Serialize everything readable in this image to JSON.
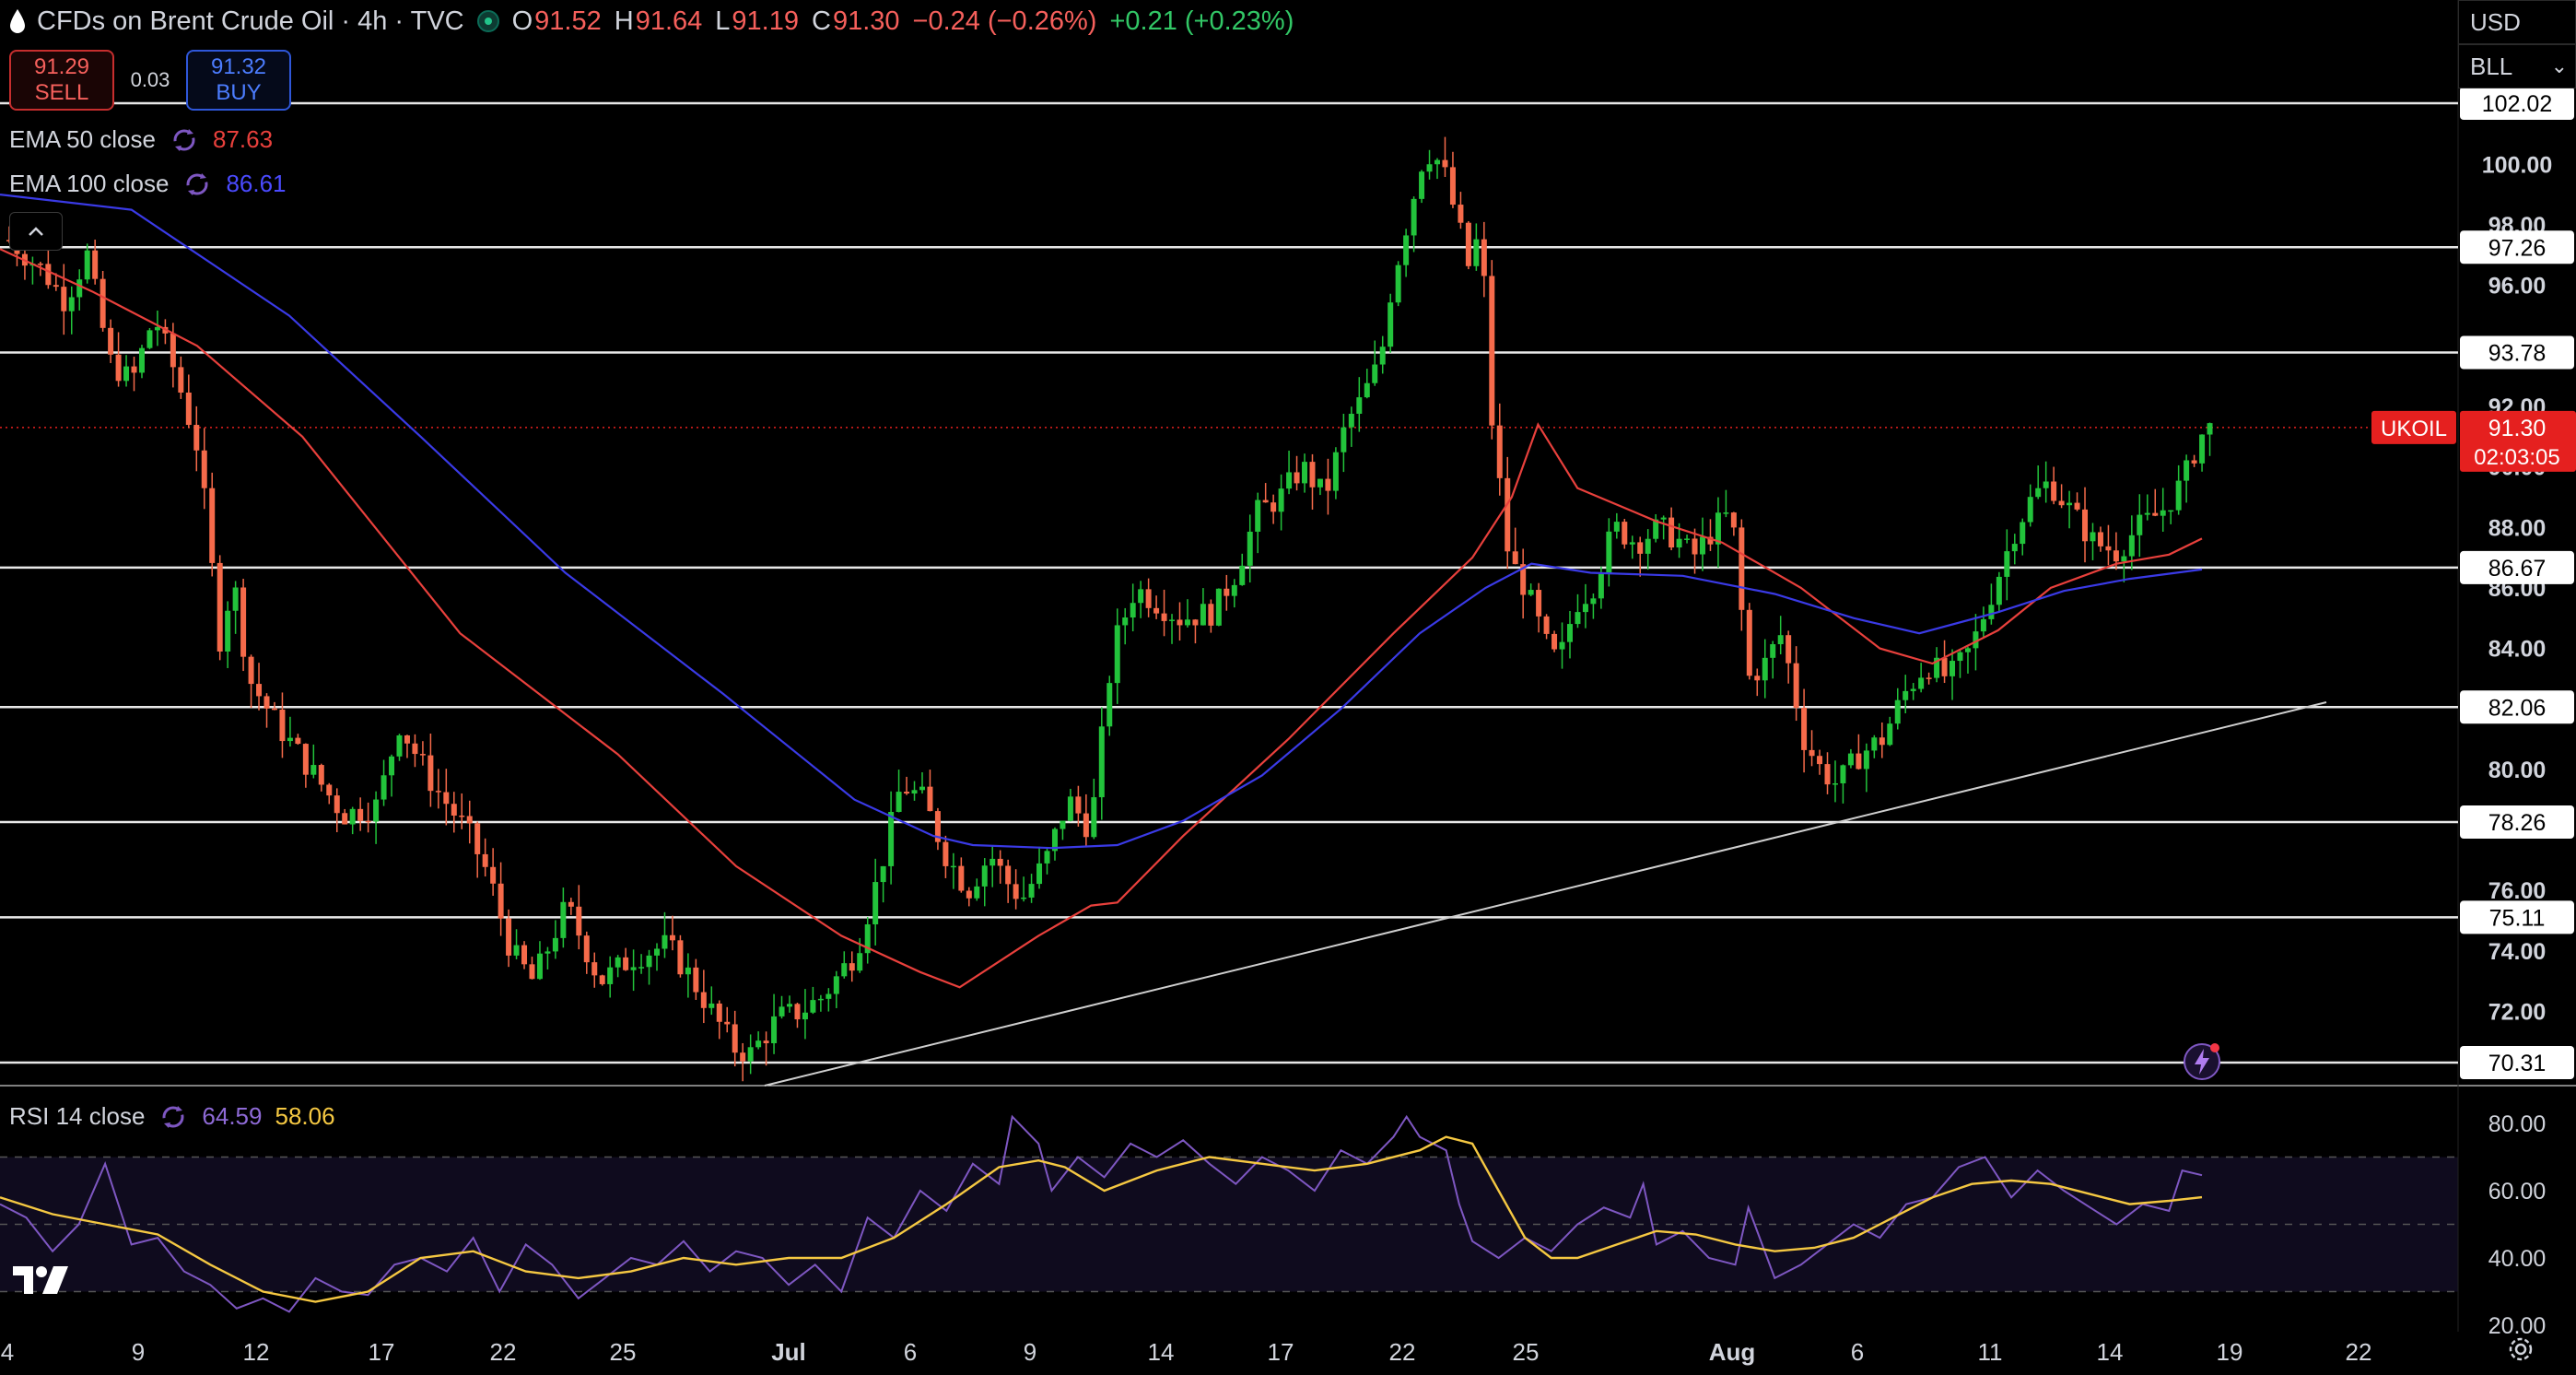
{
  "header": {
    "title": "CFDs on Brent Crude Oil · 4h · TVC",
    "open_label": "O",
    "open": "91.52",
    "high_label": "H",
    "high": "91.64",
    "low_label": "L",
    "low": "91.19",
    "close_label": "C",
    "close": "91.30",
    "change": "−0.24 (−0.26%)",
    "change2": "+0.21 (+0.23%)"
  },
  "trade": {
    "sell_price": "91.29",
    "sell_label": "SELL",
    "spread": "0.03",
    "buy_price": "91.32",
    "buy_label": "BUY"
  },
  "indicators": {
    "ema50": {
      "label": "EMA 50 close",
      "value": "87.63",
      "color": "#e8403c"
    },
    "ema100": {
      "label": "EMA 100 close",
      "value": "86.61",
      "color": "#3a3ae6"
    },
    "rsi": {
      "label": "RSI 14 close",
      "value": "64.59",
      "ma_value": "58.06",
      "color": "#7e57c2",
      "ma_color": "#f5c842"
    }
  },
  "top_right": {
    "currency": "USD",
    "unit": "BLL"
  },
  "price_tag": {
    "symbol": "UKOIL",
    "price": "91.30",
    "countdown": "02:03:05",
    "color": "#e5201f"
  },
  "colors": {
    "up": "#22c33b",
    "down": "#f56a4a",
    "background": "#000000"
  },
  "chart_data": [
    {
      "type": "candlestick",
      "title": "",
      "ylim": [
        69.5,
        103.0
      ],
      "y_ticks": [
        "72.00",
        "74.00",
        "76.00",
        "80.00",
        "84.00",
        "86.00",
        "88.00",
        "90.00",
        "92.00",
        "96.00",
        "98.00",
        "100.00"
      ],
      "x_tick_labels": [
        "4",
        "9",
        "12",
        "17",
        "22",
        "25",
        "Jul",
        "6",
        "9",
        "14",
        "17",
        "22",
        "25",
        "Aug",
        "6",
        "11",
        "14",
        "19",
        "22"
      ],
      "horizontal_levels": [
        "102.02",
        "97.26",
        "93.78",
        "86.67",
        "82.06",
        "78.26",
        "75.11",
        "70.31"
      ],
      "trendline": {
        "from": [
          "Jul 1",
          69.2
        ],
        "to": [
          "Aug 20",
          82.2
        ]
      },
      "last_price": 91.3,
      "series": [
        {
          "name": "EMA 50 close",
          "color": "#e8403c",
          "points": [
            [
              0,
              97.2
            ],
            [
              70,
              95.8
            ],
            [
              150,
              94.0
            ],
            [
              230,
              91.0
            ],
            [
              350,
              84.5
            ],
            [
              470,
              80.5
            ],
            [
              560,
              76.8
            ],
            [
              640,
              74.5
            ],
            [
              700,
              73.3
            ],
            [
              730,
              72.8
            ],
            [
              790,
              74.5
            ],
            [
              830,
              75.5
            ],
            [
              850,
              75.6
            ],
            [
              900,
              77.8
            ],
            [
              980,
              81.0
            ],
            [
              1060,
              84.5
            ],
            [
              1120,
              87.0
            ],
            [
              1150,
              89.0
            ],
            [
              1170,
              91.4
            ],
            [
              1200,
              89.3
            ],
            [
              1260,
              88.2
            ],
            [
              1310,
              87.5
            ],
            [
              1370,
              86.0
            ],
            [
              1400,
              85.0
            ],
            [
              1430,
              84.0
            ],
            [
              1470,
              83.5
            ],
            [
              1520,
              84.6
            ],
            [
              1560,
              86.0
            ],
            [
              1610,
              86.8
            ],
            [
              1650,
              87.1
            ],
            [
              1675,
              87.63
            ]
          ]
        },
        {
          "name": "EMA 100 close",
          "color": "#3a3ae6",
          "points": [
            [
              0,
              99.0
            ],
            [
              100,
              98.5
            ],
            [
              220,
              95.0
            ],
            [
              320,
              91.0
            ],
            [
              430,
              86.5
            ],
            [
              550,
              82.5
            ],
            [
              650,
              79.0
            ],
            [
              710,
              77.8
            ],
            [
              740,
              77.5
            ],
            [
              800,
              77.4
            ],
            [
              850,
              77.5
            ],
            [
              900,
              78.3
            ],
            [
              960,
              79.8
            ],
            [
              1020,
              82.0
            ],
            [
              1080,
              84.5
            ],
            [
              1130,
              86.0
            ],
            [
              1165,
              86.8
            ],
            [
              1210,
              86.5
            ],
            [
              1280,
              86.4
            ],
            [
              1350,
              85.8
            ],
            [
              1410,
              85.0
            ],
            [
              1460,
              84.5
            ],
            [
              1520,
              85.2
            ],
            [
              1570,
              85.9
            ],
            [
              1620,
              86.3
            ],
            [
              1675,
              86.61
            ]
          ]
        }
      ]
    },
    {
      "type": "line",
      "title": "RSI 14 close",
      "ylim": [
        16,
        88
      ],
      "y_ticks": [
        "20.00",
        "40.00",
        "60.00",
        "80.00"
      ],
      "bands": [
        30,
        50,
        70
      ],
      "series": [
        {
          "name": "RSI",
          "color": "#7e57c2",
          "points": [
            [
              0,
              56
            ],
            [
              20,
              52
            ],
            [
              40,
              42
            ],
            [
              60,
              50
            ],
            [
              80,
              68
            ],
            [
              100,
              44
            ],
            [
              120,
              46
            ],
            [
              140,
              36
            ],
            [
              160,
              32
            ],
            [
              180,
              25
            ],
            [
              200,
              28
            ],
            [
              220,
              24
            ],
            [
              240,
              34
            ],
            [
              260,
              30
            ],
            [
              280,
              29
            ],
            [
              300,
              38
            ],
            [
              320,
              40
            ],
            [
              340,
              36
            ],
            [
              360,
              46
            ],
            [
              380,
              30
            ],
            [
              400,
              44
            ],
            [
              420,
              38
            ],
            [
              440,
              28
            ],
            [
              460,
              34
            ],
            [
              480,
              40
            ],
            [
              500,
              38
            ],
            [
              520,
              45
            ],
            [
              540,
              36
            ],
            [
              560,
              42
            ],
            [
              580,
              40
            ],
            [
              600,
              32
            ],
            [
              620,
              38
            ],
            [
              640,
              30
            ],
            [
              660,
              52
            ],
            [
              680,
              46
            ],
            [
              700,
              60
            ],
            [
              720,
              54
            ],
            [
              740,
              68
            ],
            [
              760,
              62
            ],
            [
              770,
              82
            ],
            [
              790,
              74
            ],
            [
              800,
              60
            ],
            [
              820,
              70
            ],
            [
              840,
              64
            ],
            [
              860,
              74
            ],
            [
              880,
              70
            ],
            [
              900,
              75
            ],
            [
              920,
              68
            ],
            [
              940,
              62
            ],
            [
              960,
              70
            ],
            [
              980,
              66
            ],
            [
              1000,
              60
            ],
            [
              1020,
              72
            ],
            [
              1040,
              68
            ],
            [
              1060,
              76
            ],
            [
              1070,
              82
            ],
            [
              1080,
              76
            ],
            [
              1100,
              72
            ],
            [
              1110,
              56
            ],
            [
              1120,
              45
            ],
            [
              1140,
              40
            ],
            [
              1160,
              46
            ],
            [
              1180,
              42
            ],
            [
              1200,
              50
            ],
            [
              1220,
              55
            ],
            [
              1240,
              52
            ],
            [
              1250,
              62
            ],
            [
              1260,
              44
            ],
            [
              1280,
              48
            ],
            [
              1300,
              40
            ],
            [
              1320,
              38
            ],
            [
              1330,
              55
            ],
            [
              1350,
              34
            ],
            [
              1370,
              38
            ],
            [
              1390,
              44
            ],
            [
              1410,
              50
            ],
            [
              1430,
              46
            ],
            [
              1450,
              56
            ],
            [
              1470,
              58
            ],
            [
              1490,
              67
            ],
            [
              1510,
              70
            ],
            [
              1530,
              58
            ],
            [
              1550,
              66
            ],
            [
              1570,
              60
            ],
            [
              1590,
              55
            ],
            [
              1610,
              50
            ],
            [
              1630,
              56
            ],
            [
              1650,
              54
            ],
            [
              1660,
              66
            ],
            [
              1675,
              64.59
            ]
          ]
        },
        {
          "name": "RSI MA",
          "color": "#f5c842",
          "points": [
            [
              0,
              58
            ],
            [
              40,
              53
            ],
            [
              80,
              50
            ],
            [
              120,
              47
            ],
            [
              160,
              38
            ],
            [
              200,
              30
            ],
            [
              240,
              27
            ],
            [
              280,
              30
            ],
            [
              320,
              40
            ],
            [
              360,
              42
            ],
            [
              400,
              36
            ],
            [
              440,
              34
            ],
            [
              480,
              36
            ],
            [
              520,
              40
            ],
            [
              560,
              38
            ],
            [
              600,
              40
            ],
            [
              640,
              40
            ],
            [
              680,
              46
            ],
            [
              720,
              56
            ],
            [
              760,
              67
            ],
            [
              790,
              69
            ],
            [
              810,
              67
            ],
            [
              840,
              60
            ],
            [
              880,
              66
            ],
            [
              920,
              70
            ],
            [
              960,
              68
            ],
            [
              1000,
              66
            ],
            [
              1040,
              68
            ],
            [
              1080,
              72
            ],
            [
              1100,
              76
            ],
            [
              1120,
              74
            ],
            [
              1140,
              60
            ],
            [
              1160,
              46
            ],
            [
              1180,
              40
            ],
            [
              1200,
              40
            ],
            [
              1230,
              44
            ],
            [
              1260,
              48
            ],
            [
              1290,
              47
            ],
            [
              1320,
              44
            ],
            [
              1350,
              42
            ],
            [
              1380,
              43
            ],
            [
              1410,
              46
            ],
            [
              1440,
              52
            ],
            [
              1470,
              58
            ],
            [
              1500,
              62
            ],
            [
              1530,
              63
            ],
            [
              1560,
              62
            ],
            [
              1590,
              59
            ],
            [
              1620,
              56
            ],
            [
              1650,
              57
            ],
            [
              1675,
              58.06
            ]
          ]
        }
      ]
    }
  ]
}
